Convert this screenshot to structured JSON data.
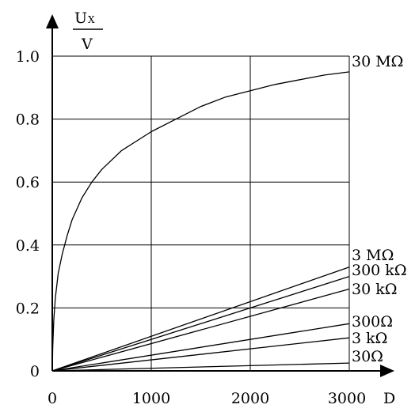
{
  "chart_data": {
    "type": "line",
    "ylabel_numerator": "U",
    "ylabel_subscript": "X",
    "ylabel_denominator": "V",
    "xlabel": "D",
    "xlim": [
      0,
      3000
    ],
    "ylim": [
      0,
      1.0
    ],
    "grid": true,
    "x_ticks": [
      {
        "value": 0,
        "label": "0"
      },
      {
        "value": 1000,
        "label": "1000"
      },
      {
        "value": 2000,
        "label": "2000"
      },
      {
        "value": 3000,
        "label": "3000"
      }
    ],
    "y_ticks": [
      {
        "value": 0,
        "label": "0"
      },
      {
        "value": 0.2,
        "label": "0.2"
      },
      {
        "value": 0.4,
        "label": "0.4"
      },
      {
        "value": 0.6,
        "label": "0.6"
      },
      {
        "value": 0.8,
        "label": "0.8"
      },
      {
        "value": 1.0,
        "label": "1.0"
      }
    ],
    "series": [
      {
        "name": "30 MΩ",
        "x": [
          0,
          5,
          15,
          30,
          60,
          100,
          150,
          200,
          300,
          400,
          500,
          700,
          1000,
          1250,
          1500,
          1750,
          2000,
          2250,
          2500,
          2750,
          3000
        ],
        "values": [
          0,
          0.075,
          0.16,
          0.23,
          0.31,
          0.37,
          0.43,
          0.48,
          0.55,
          0.6,
          0.64,
          0.7,
          0.76,
          0.8,
          0.84,
          0.87,
          0.89,
          0.91,
          0.925,
          0.94,
          0.95
        ]
      },
      {
        "name": "3 MΩ",
        "x": [
          0,
          3000
        ],
        "values": [
          0,
          0.33
        ]
      },
      {
        "name": "300 kΩ",
        "x": [
          0,
          3000
        ],
        "values": [
          0,
          0.3
        ]
      },
      {
        "name": "30 kΩ",
        "x": [
          0,
          3000
        ],
        "values": [
          0,
          0.26
        ]
      },
      {
        "name": "300Ω",
        "x": [
          0,
          3000
        ],
        "values": [
          0,
          0.15
        ]
      },
      {
        "name": "3 kΩ",
        "x": [
          0,
          3000
        ],
        "values": [
          0,
          0.105
        ]
      },
      {
        "name": "30Ω",
        "x": [
          0,
          3000
        ],
        "values": [
          0,
          0.025
        ]
      }
    ]
  }
}
